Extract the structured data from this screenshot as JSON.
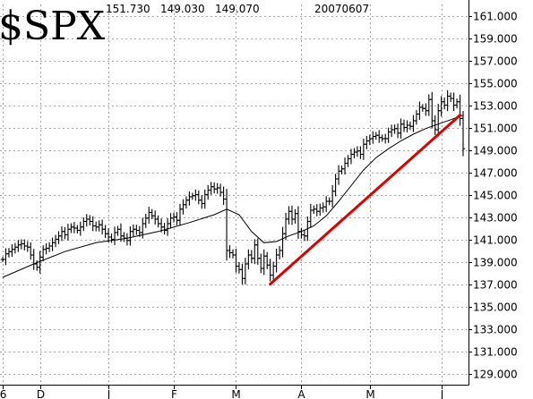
{
  "header": {
    "symbol": "$SPX",
    "high": "151.730",
    "low": "149.030",
    "close": "149.070",
    "date": "20070607"
  },
  "chart_data": {
    "type": "line",
    "title": "$SPX",
    "price_scale": "index / 10",
    "ylim": [
      128.0,
      162.0
    ],
    "grid": true,
    "y_ticks": [
      "129.000",
      "131.000",
      "133.000",
      "135.000",
      "137.000",
      "139.000",
      "141.000",
      "143.000",
      "145.000",
      "147.000",
      "149.000",
      "151.000",
      "153.000",
      "155.000",
      "157.000",
      "159.000",
      "161.000"
    ],
    "x_ticks": [
      "6",
      "D",
      "J",
      "F",
      "M",
      "A",
      "M",
      "J"
    ],
    "series": [
      {
        "style": "ohlc-bars",
        "color": "#000000",
        "close": [
          139.2,
          139.7,
          139.9,
          140.1,
          140.3,
          140.5,
          140.6,
          140.4,
          140.3,
          139.6,
          138.8,
          138.5,
          139.4,
          140.1,
          140.2,
          140.4,
          140.7,
          141.0,
          141.3,
          141.7,
          141.4,
          141.9,
          142.1,
          142.0,
          141.8,
          142.1,
          142.6,
          142.8,
          142.6,
          142.2,
          142.1,
          142.3,
          141.9,
          141.5,
          141.2,
          141.0,
          141.6,
          141.9,
          141.3,
          141.1,
          140.9,
          141.7,
          141.9,
          141.8,
          141.6,
          142.4,
          142.9,
          143.4,
          143.1,
          142.8,
          142.4,
          142.1,
          141.8,
          142.4,
          142.9,
          143.0,
          142.7,
          143.7,
          144.1,
          144.5,
          144.8,
          144.9,
          145.0,
          144.5,
          144.2,
          145.0,
          145.4,
          145.7,
          145.5,
          145.6,
          145.2,
          144.6,
          140.0,
          139.8,
          139.6,
          138.6,
          138.3,
          137.5,
          138.8,
          139.6,
          139.3,
          140.5,
          139.3,
          138.4,
          139.5,
          138.7,
          137.8,
          138.6,
          139.6,
          140.0,
          141.5,
          142.8,
          143.5,
          142.8,
          143.3,
          141.7,
          141.4,
          141.3,
          142.6,
          143.6,
          143.7,
          143.5,
          143.8,
          143.9,
          144.4,
          144.4,
          145.3,
          146.4,
          147.1,
          147.3,
          147.8,
          148.2,
          148.6,
          148.8,
          148.9,
          148.6,
          149.5,
          149.8,
          150.0,
          150.2,
          150.3,
          150.1,
          150.0,
          150.0,
          150.6,
          150.8,
          150.9,
          150.5,
          151.3,
          151.0,
          151.2,
          151.1,
          151.6,
          152.2,
          152.8,
          152.7,
          152.5,
          153.5,
          151.6,
          150.8,
          152.5,
          153.3,
          153.0,
          153.8,
          153.6,
          153.0,
          153.3,
          151.8,
          149.1
        ]
      },
      {
        "name": "moving average",
        "style": "line",
        "color": "#000000",
        "points": [
          [
            0,
            137.6
          ],
          [
            10,
            138.8
          ],
          [
            20,
            139.9
          ],
          [
            30,
            140.7
          ],
          [
            40,
            141.1
          ],
          [
            50,
            141.7
          ],
          [
            60,
            142.5
          ],
          [
            68,
            143.2
          ],
          [
            72,
            143.7
          ],
          [
            76,
            143.2
          ],
          [
            80,
            141.7
          ],
          [
            84,
            140.7
          ],
          [
            88,
            140.8
          ],
          [
            92,
            141.3
          ],
          [
            96,
            141.7
          ],
          [
            100,
            142.2
          ],
          [
            104,
            143.1
          ],
          [
            108,
            144.4
          ],
          [
            112,
            145.8
          ],
          [
            116,
            147.2
          ],
          [
            120,
            148.3
          ],
          [
            124,
            149.1
          ],
          [
            128,
            149.8
          ],
          [
            132,
            150.4
          ],
          [
            136,
            150.9
          ],
          [
            140,
            151.3
          ],
          [
            144,
            151.7
          ],
          [
            148,
            152.1
          ]
        ]
      },
      {
        "name": "trend line",
        "style": "line",
        "color": "#e00000",
        "points": [
          [
            86,
            137.0
          ],
          [
            147,
            152.1
          ]
        ]
      }
    ],
    "x_tick_bars": [
      0,
      12,
      34,
      55,
      75,
      96,
      118,
      141
    ]
  }
}
